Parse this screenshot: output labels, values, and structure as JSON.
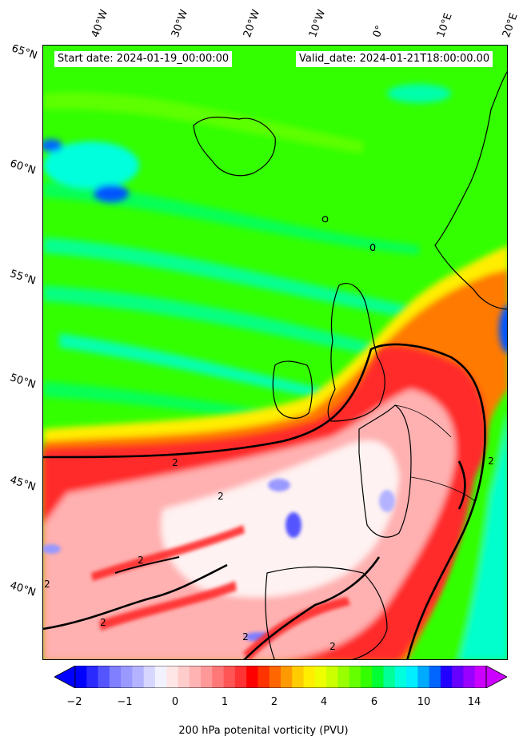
{
  "header": {
    "start_date": "Start date: 2024-01-19_00:00:00",
    "valid_date": "Valid_date: 2024-01-21T18:00:00.00"
  },
  "longitude_labels": [
    "40°W",
    "30°W",
    "20°W",
    "10°W",
    "0°",
    "10°E",
    "20°E"
  ],
  "latitude_labels": [
    "65°N",
    "60°N",
    "55°N",
    "50°N",
    "45°N",
    "40°N"
  ],
  "contour_labels": [
    "2",
    "2",
    "2",
    "2",
    "2",
    "2",
    "2",
    "2"
  ],
  "colorbar": {
    "label": "200 hPa potenital vorticity (PVU)",
    "tick_labels": [
      "−2",
      "−1",
      "0",
      "1",
      "2",
      "4",
      "6",
      "10",
      "14"
    ],
    "colors": [
      "#0000ff",
      "#2a2aff",
      "#5555ff",
      "#7f7fff",
      "#9999ff",
      "#b3b3ff",
      "#d6d6ff",
      "#f2f2ff",
      "#ffe6e6",
      "#ffcccc",
      "#ffb3b3",
      "#ff9999",
      "#ff7777",
      "#ff5555",
      "#ff3333",
      "#ff0000",
      "#ff3300",
      "#ff6600",
      "#ff9900",
      "#ffcc00",
      "#ffee00",
      "#eeff00",
      "#ccff00",
      "#99ff00",
      "#66ff00",
      "#33ff00",
      "#00ff33",
      "#00ff99",
      "#00ffdd",
      "#00eeff",
      "#00aaff",
      "#0066ff",
      "#2200ff",
      "#6600ff",
      "#9900ff",
      "#cc00ff"
    ],
    "extend_low_color": "#0000ff",
    "extend_high_color": "#cc00ff"
  },
  "field_colors": {
    "low_pv": "#33ff00",
    "mid_pv": "#00ffcc",
    "trough_blue": "#0055ff",
    "high_pv_red": "#ff2a2a",
    "high_pv_orange": "#ff7a00",
    "high_pv_pink": "#ffb0b0",
    "high_pv_white": "#fff2f2",
    "yellow_band": "#ffee00"
  }
}
